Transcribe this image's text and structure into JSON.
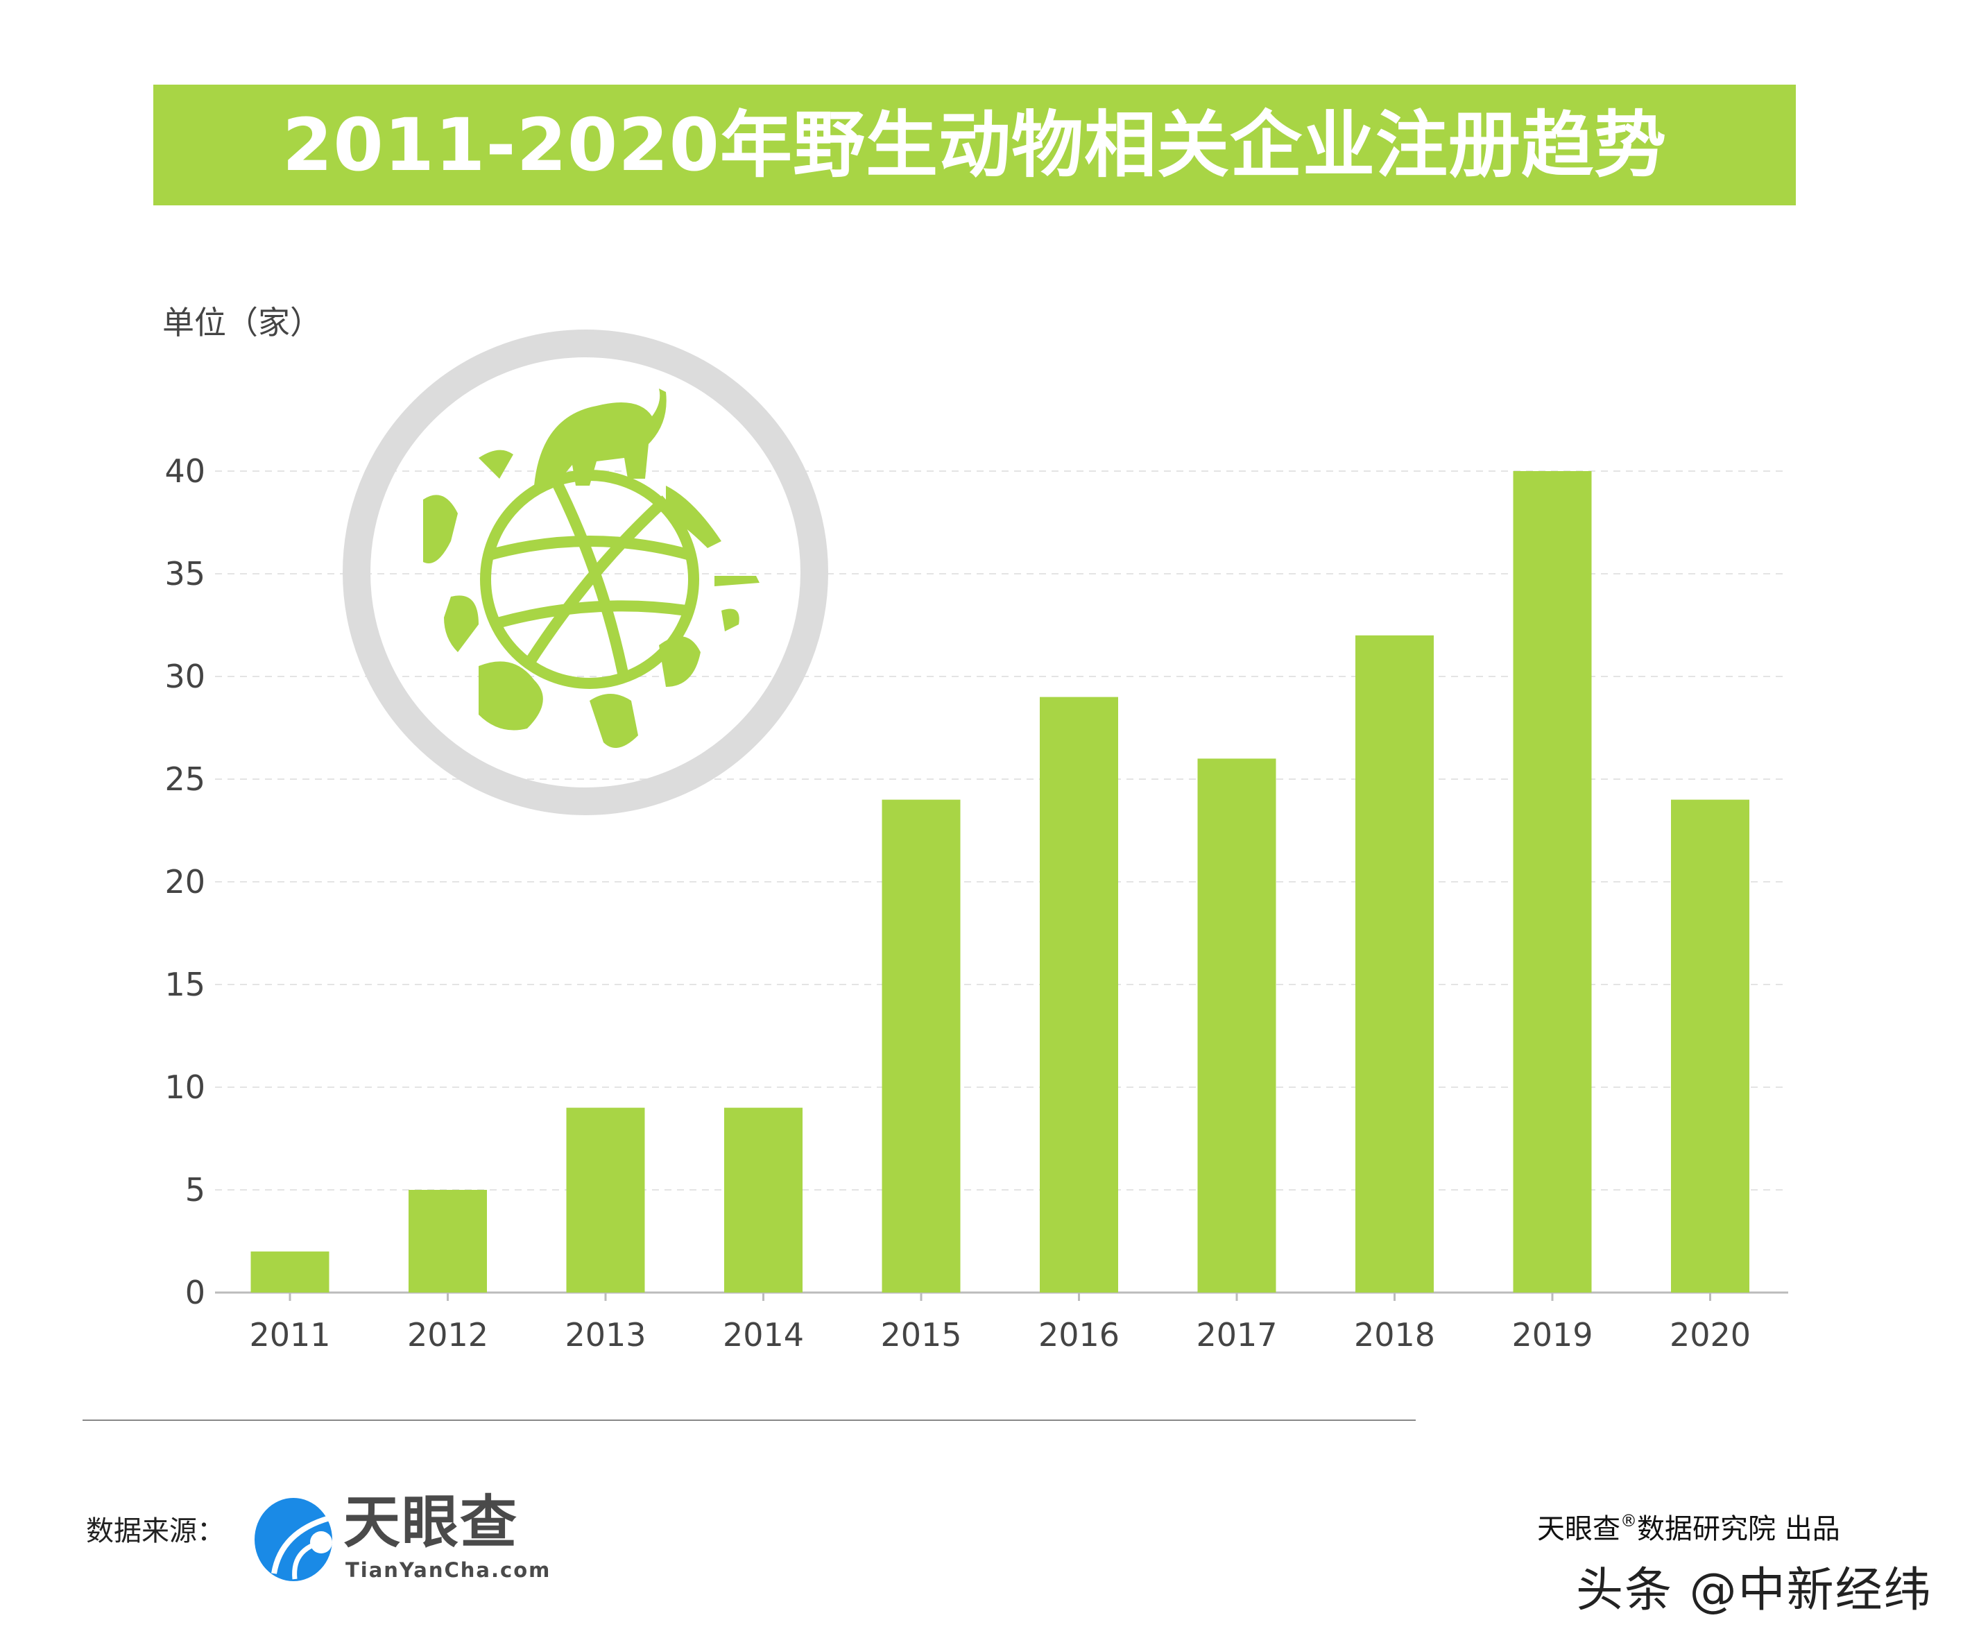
{
  "chart_data": {
    "type": "bar",
    "title": "2011-2020年野生动物相关企业注册趋势",
    "ylabel": "单位（家）",
    "xlabel": "",
    "categories": [
      "2011",
      "2012",
      "2013",
      "2014",
      "2015",
      "2016",
      "2017",
      "2018",
      "2019",
      "2020"
    ],
    "values": [
      2,
      5,
      9,
      9,
      24,
      29,
      26,
      32,
      40,
      24
    ],
    "ylim": [
      0,
      40
    ],
    "yticks": [
      0,
      5,
      10,
      15,
      20,
      25,
      30,
      35,
      40
    ],
    "grid": true,
    "bar_color": "#a8d545",
    "title_band_color": "#a8d545"
  },
  "footer": {
    "source_label": "数据来源：",
    "logo_cn": "天眼查",
    "logo_en": "TianYanCha.com",
    "producer_prefix": "天眼查",
    "producer_mark": "®",
    "producer_suffix": "数据研究院 出品",
    "watermark": "头条 @中新经纬"
  }
}
